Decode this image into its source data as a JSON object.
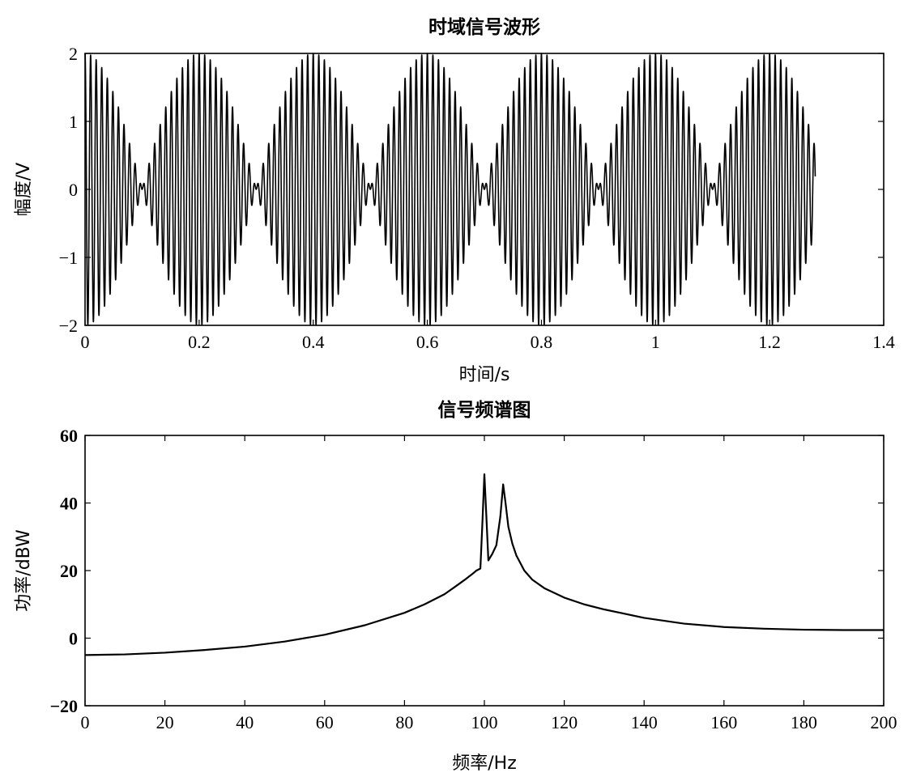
{
  "chart_data": [
    {
      "type": "line",
      "title": "时域信号波形",
      "xlabel": "时间/s",
      "ylabel": "幅度/V",
      "xlim": [
        0,
        1.4
      ],
      "ylim": [
        -2,
        2
      ],
      "xticks": [
        "0",
        "0.2",
        "0.4",
        "0.6",
        "0.8",
        "1",
        "1.2",
        "1.4"
      ],
      "yticks": [
        "2",
        "1",
        "0",
        "−1",
        "−2"
      ],
      "grid": false,
      "series": [
        {
          "signal": "cos(2π·100·t) + cos(2π·105·t)",
          "components_hz": [
            100,
            105
          ],
          "t_range": [
            0,
            1.28
          ],
          "beat_period_s": 0.2,
          "peak_amplitude": 2
        }
      ]
    },
    {
      "type": "line",
      "title": "信号频谱图",
      "xlabel": "频率/Hz",
      "ylabel": "功率/dBW",
      "xlim": [
        0,
        200
      ],
      "ylim": [
        -20,
        60
      ],
      "xticks": [
        "0",
        "20",
        "40",
        "60",
        "80",
        "100",
        "120",
        "140",
        "160",
        "180",
        "200"
      ],
      "yticks": [
        "60",
        "40",
        "20",
        "0",
        "−20"
      ],
      "grid": false,
      "series": [
        {
          "x": [
            0,
            10,
            20,
            30,
            40,
            50,
            60,
            70,
            80,
            85,
            90,
            93,
            95,
            97,
            98,
            99,
            99.5,
            100,
            100.5,
            101,
            102,
            103,
            104,
            104.7,
            105.3,
            106,
            107,
            108,
            110,
            112,
            115,
            120,
            125,
            130,
            140,
            150,
            160,
            170,
            180,
            190,
            200
          ],
          "y": [
            -5,
            -4.8,
            -4.3,
            -3.5,
            -2.5,
            -1,
            1,
            3.8,
            7.5,
            10,
            13,
            15.5,
            17.2,
            19,
            20,
            20.6,
            34,
            48.5,
            36,
            23,
            25,
            27.5,
            36,
            45.5,
            40,
            33,
            28,
            24.5,
            20,
            17.3,
            14.8,
            12,
            10,
            8.5,
            6,
            4.3,
            3.3,
            2.8,
            2.5,
            2.4,
            2.4
          ]
        }
      ]
    }
  ]
}
